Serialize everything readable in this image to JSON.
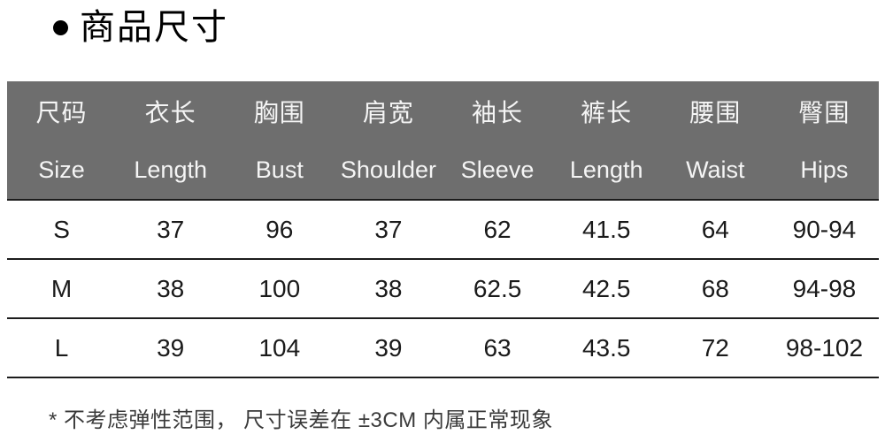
{
  "title": {
    "text": "商品尺寸"
  },
  "colors": {
    "header_bg": "#6e6e6e",
    "header_text": "#f5f5f5",
    "body_text": "#1a1a1a",
    "grid_line": "#1c1c1c"
  },
  "chart_data": {
    "type": "table",
    "title": "商品尺寸",
    "legend_position": "none",
    "grid": "horizontal-lines",
    "columns": [
      {
        "zh": "尺码",
        "en": "Size"
      },
      {
        "zh": "衣长",
        "en": "Length"
      },
      {
        "zh": "胸围",
        "en": "Bust"
      },
      {
        "zh": "肩宽",
        "en": "Shoulder"
      },
      {
        "zh": "袖长",
        "en": "Sleeve"
      },
      {
        "zh": "裤长",
        "en": "Length"
      },
      {
        "zh": "腰围",
        "en": "Waist"
      },
      {
        "zh": "臀围",
        "en": "Hips"
      }
    ],
    "rows": [
      {
        "cells": [
          "S",
          "37",
          "96",
          "37",
          "62",
          "41.5",
          "64",
          "90-94"
        ]
      },
      {
        "cells": [
          "M",
          "38",
          "100",
          "38",
          "62.5",
          "42.5",
          "68",
          "94-98"
        ]
      },
      {
        "cells": [
          "L",
          "39",
          "104",
          "39",
          "63",
          "43.5",
          "72",
          "98-102"
        ]
      }
    ],
    "footnote": "* 不考虑弹性范围， 尺寸误差在 ±3CM 内属正常现象"
  }
}
